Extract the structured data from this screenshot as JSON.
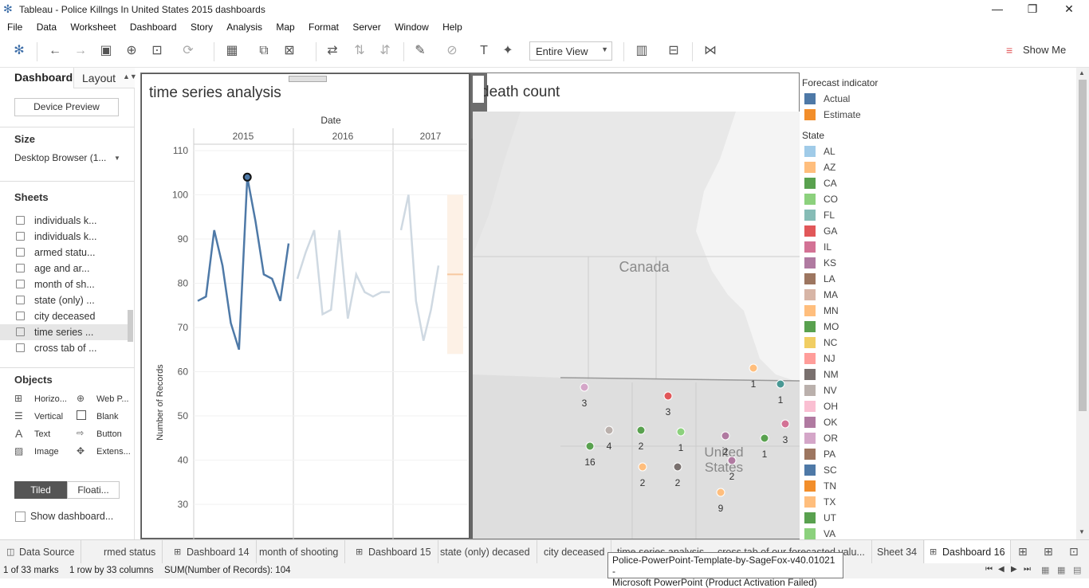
{
  "app": {
    "title": "Tableau - Police Killngs In United States 2015 dashboards"
  },
  "menu": [
    "File",
    "Data",
    "Worksheet",
    "Dashboard",
    "Story",
    "Analysis",
    "Map",
    "Format",
    "Server",
    "Window",
    "Help"
  ],
  "toolbar": {
    "fit_label": "Entire View",
    "show_me": "Show Me"
  },
  "left": {
    "tab_dashboard": "Dashboard",
    "tab_layout": "Layout",
    "device_preview": "Device Preview",
    "size_label": "Size",
    "size_value": "Desktop Browser (1...",
    "sheets_label": "Sheets",
    "sheets": [
      "individuals k...",
      "individuals k...",
      "armed statu...",
      "age and ar...",
      "month of sh...",
      "state (only) ...",
      "city deceased",
      "time series ...",
      "cross tab of ..."
    ],
    "objects_label": "Objects",
    "objects": [
      "Horizo...",
      "Web P...",
      "Vertical",
      "Blank",
      "Text",
      "Button",
      "Image",
      "Extens..."
    ],
    "tiled": "Tiled",
    "floating": "Floati...",
    "show_title": "Show dashboard..."
  },
  "chart_data": {
    "type": "line",
    "title": "time series analysis",
    "column_header": "Date",
    "years": [
      "2015",
      "2016",
      "2017"
    ],
    "ylabel": "Number of Records",
    "ylim": [
      30,
      110
    ],
    "yticks": [
      30,
      40,
      50,
      60,
      70,
      80,
      90,
      100,
      110
    ],
    "series": [
      {
        "name": "2015",
        "values": [
          76,
          77,
          92,
          84,
          71,
          65,
          104,
          94,
          82,
          81,
          76,
          89
        ]
      },
      {
        "name": "2016",
        "values": [
          81,
          87,
          92,
          73,
          74,
          92,
          72,
          82,
          78,
          77,
          78,
          78
        ]
      },
      {
        "name": "2017",
        "values": [
          92,
          100,
          76,
          67,
          74,
          84
        ]
      }
    ],
    "forecast": {
      "low": 64,
      "high": 100,
      "mean": 82
    },
    "highlight": {
      "year": "2015",
      "value": 104
    }
  },
  "map": {
    "title": "death count",
    "country_label": "Canada",
    "us_label": "United States",
    "points": [
      {
        "label": "3",
        "color": "#d4a6c8"
      },
      {
        "label": "3",
        "color": "#e15759"
      },
      {
        "label": "1",
        "color": "#ffbe7d"
      },
      {
        "label": "1",
        "color": "#499894"
      },
      {
        "label": "4",
        "color": "#bab0ac"
      },
      {
        "label": "2",
        "color": "#59a14f"
      },
      {
        "label": "1",
        "color": "#8cd17d"
      },
      {
        "label": "2",
        "color": "#b07aa1"
      },
      {
        "label": "1",
        "color": "#59a14f"
      },
      {
        "label": "3",
        "color": "#d37295"
      },
      {
        "label": "16",
        "color": "#59a14f"
      },
      {
        "label": "2",
        "color": "#ffbe7d"
      },
      {
        "label": "2",
        "color": "#79706e"
      },
      {
        "label": "2",
        "color": "#b07aa1"
      },
      {
        "label": "9",
        "color": "#ffbe7d"
      }
    ]
  },
  "legend": {
    "forecast_title": "Forecast indicator",
    "forecast": [
      {
        "label": "Actual",
        "color": "#4e79a7"
      },
      {
        "label": "Estimate",
        "color": "#f28e2b"
      }
    ],
    "state_title": "State",
    "states": [
      {
        "label": "AL",
        "color": "#a0cbe8"
      },
      {
        "label": "AZ",
        "color": "#ffbe7d"
      },
      {
        "label": "CA",
        "color": "#59a14f"
      },
      {
        "label": "CO",
        "color": "#8cd17d"
      },
      {
        "label": "FL",
        "color": "#86bcb6"
      },
      {
        "label": "GA",
        "color": "#e15759"
      },
      {
        "label": "IL",
        "color": "#d37295"
      },
      {
        "label": "KS",
        "color": "#b07aa1"
      },
      {
        "label": "LA",
        "color": "#9d7660"
      },
      {
        "label": "MA",
        "color": "#d7b5a6"
      },
      {
        "label": "MN",
        "color": "#ffbe7d"
      },
      {
        "label": "MO",
        "color": "#59a14f"
      },
      {
        "label": "NC",
        "color": "#f1ce63"
      },
      {
        "label": "NJ",
        "color": "#ff9d9a"
      },
      {
        "label": "NM",
        "color": "#79706e"
      },
      {
        "label": "NV",
        "color": "#bab0ac"
      },
      {
        "label": "OH",
        "color": "#fabfd2"
      },
      {
        "label": "OK",
        "color": "#b07aa1"
      },
      {
        "label": "OR",
        "color": "#d4a6c8"
      },
      {
        "label": "PA",
        "color": "#9d7660"
      },
      {
        "label": "SC",
        "color": "#4e79a7"
      },
      {
        "label": "TN",
        "color": "#f28e2b"
      },
      {
        "label": "TX",
        "color": "#ffbe7d"
      },
      {
        "label": "UT",
        "color": "#59a14f"
      },
      {
        "label": "VA",
        "color": "#8cd17d"
      }
    ]
  },
  "tabs": [
    "Data Source",
    "rmed status",
    "Dashboard 14",
    "month of shooting",
    "Dashboard 15",
    "state (only) decased",
    "city deceased",
    "time series analysis",
    "cross tab of our forecasted valu...",
    "Sheet 34",
    "Dashboard 16"
  ],
  "status": {
    "marks": "1 of 33 marks",
    "rows": "1 row by 33 columns",
    "sum": "SUM(Number of Records): 104"
  },
  "tooltip": {
    "line1": "Police-PowerPoint-Template-by-SageFox-v40.01021 -",
    "line2": "Microsoft PowerPoint (Product Activation Failed)"
  }
}
